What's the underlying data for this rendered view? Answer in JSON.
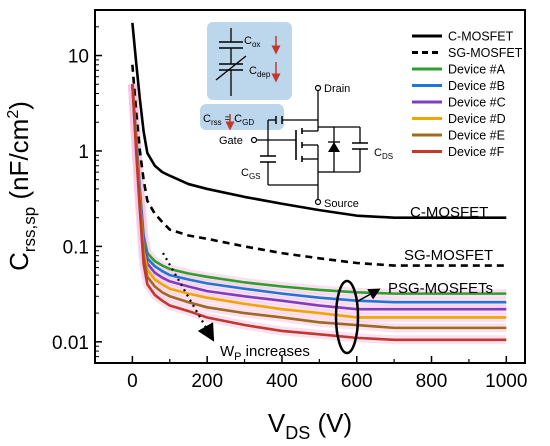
{
  "chart_data": {
    "type": "line",
    "xlabel": {
      "main": "V",
      "sub": "DS",
      "unit": " (V)"
    },
    "ylabel": {
      "main": "C",
      "sub": "rss,sp",
      "unit": " (nF/cm",
      "sup": "2",
      "close": ")"
    },
    "xlim": [
      -100,
      1050
    ],
    "ylim": [
      0.006,
      30
    ],
    "yscale": "log",
    "xticks": [
      0,
      200,
      400,
      600,
      800,
      1000
    ],
    "xtick_labels": [
      "0",
      "200",
      "400",
      "600",
      "800",
      "1000"
    ],
    "yticks": [
      0.01,
      0.1,
      1,
      10
    ],
    "ytick_labels": [
      "0.01",
      "0.1",
      "1",
      "10"
    ],
    "grid": false,
    "legend_position": "top-right",
    "series": [
      {
        "name": "C-MOSFET",
        "color": "#000000",
        "dash": "solid",
        "x": [
          0,
          10,
          20,
          30,
          40,
          60,
          80,
          100,
          150,
          200,
          300,
          400,
          500,
          600,
          700,
          800,
          900,
          1000
        ],
        "y": [
          22,
          8.5,
          3.5,
          1.6,
          0.95,
          0.7,
          0.6,
          0.55,
          0.45,
          0.4,
          0.33,
          0.28,
          0.24,
          0.21,
          0.2,
          0.2,
          0.2,
          0.2
        ]
      },
      {
        "name": "SG-MOSFET",
        "color": "#000000",
        "dash": "dashed",
        "x": [
          0,
          10,
          20,
          30,
          40,
          60,
          80,
          100,
          150,
          200,
          300,
          400,
          500,
          600,
          700,
          800,
          900,
          1000
        ],
        "y": [
          8,
          2.6,
          1.0,
          0.5,
          0.3,
          0.22,
          0.18,
          0.15,
          0.13,
          0.12,
          0.1,
          0.085,
          0.075,
          0.067,
          0.063,
          0.063,
          0.063,
          0.063
        ]
      },
      {
        "name": "Device #A",
        "color": "#2ca02c",
        "dash": "solid",
        "x": [
          0,
          10,
          20,
          30,
          40,
          60,
          80,
          100,
          150,
          200,
          300,
          400,
          500,
          600,
          700,
          800,
          900,
          1000
        ],
        "y": [
          5,
          1.5,
          0.4,
          0.13,
          0.085,
          0.07,
          0.063,
          0.058,
          0.052,
          0.048,
          0.042,
          0.038,
          0.035,
          0.033,
          0.032,
          0.032,
          0.032,
          0.032
        ]
      },
      {
        "name": "Device #B",
        "color": "#1f77d4",
        "dash": "solid",
        "x": [
          0,
          10,
          20,
          30,
          40,
          60,
          80,
          100,
          150,
          200,
          300,
          400,
          500,
          600,
          700,
          800,
          900,
          1000
        ],
        "y": [
          5,
          1.4,
          0.37,
          0.12,
          0.075,
          0.062,
          0.055,
          0.05,
          0.045,
          0.041,
          0.036,
          0.032,
          0.029,
          0.027,
          0.026,
          0.026,
          0.026,
          0.026
        ]
      },
      {
        "name": "Device #C",
        "color": "#7e3fbf",
        "dash": "solid",
        "x": [
          0,
          10,
          20,
          30,
          40,
          60,
          80,
          100,
          150,
          200,
          300,
          400,
          500,
          600,
          700,
          800,
          900,
          1000
        ],
        "y": [
          5,
          1.3,
          0.34,
          0.105,
          0.066,
          0.053,
          0.047,
          0.043,
          0.038,
          0.034,
          0.03,
          0.027,
          0.024,
          0.022,
          0.022,
          0.022,
          0.022,
          0.022
        ]
      },
      {
        "name": "Device #D",
        "color": "#f0a500",
        "dash": "solid",
        "x": [
          0,
          10,
          20,
          30,
          40,
          60,
          80,
          100,
          150,
          200,
          300,
          400,
          500,
          600,
          700,
          800,
          900,
          1000
        ],
        "y": [
          5,
          1.2,
          0.3,
          0.09,
          0.057,
          0.045,
          0.04,
          0.036,
          0.032,
          0.029,
          0.025,
          0.022,
          0.02,
          0.018,
          0.018,
          0.018,
          0.018,
          0.018
        ]
      },
      {
        "name": "Device #E",
        "color": "#9c6b1e",
        "dash": "solid",
        "x": [
          0,
          10,
          20,
          30,
          40,
          60,
          80,
          100,
          150,
          200,
          300,
          400,
          500,
          600,
          700,
          800,
          900,
          1000
        ],
        "y": [
          5,
          1.1,
          0.27,
          0.078,
          0.048,
          0.038,
          0.033,
          0.03,
          0.026,
          0.023,
          0.02,
          0.018,
          0.016,
          0.015,
          0.014,
          0.014,
          0.014,
          0.014
        ]
      },
      {
        "name": "Device #F",
        "color": "#c0392b",
        "dash": "solid",
        "x": [
          0,
          10,
          20,
          30,
          40,
          60,
          80,
          100,
          150,
          200,
          300,
          400,
          500,
          600,
          700,
          800,
          900,
          1000
        ],
        "y": [
          5,
          1.0,
          0.24,
          0.066,
          0.04,
          0.031,
          0.027,
          0.024,
          0.021,
          0.018,
          0.015,
          0.013,
          0.012,
          0.011,
          0.0105,
          0.0105,
          0.0105,
          0.0105
        ]
      }
    ],
    "annotations": {
      "cmosfet": "C-MOSFET",
      "sgmosfet": "SG-MOSFET",
      "psg": "PSG-MOSFETs",
      "wp": {
        "main": "W",
        "sub": "P",
        "rest": " increases"
      }
    },
    "inset": {
      "cox": {
        "main": "C",
        "sub": "ox"
      },
      "cdep": {
        "main": "C",
        "sub": "dep"
      },
      "crss_eq": {
        "a": "C",
        "a_sub": "rss",
        "eq": " = C",
        "b_sub": "GD"
      },
      "gate": "Gate",
      "drain": "Drain",
      "source": "Source",
      "cgs": {
        "main": "C",
        "sub": "GS"
      },
      "cds": {
        "main": "C",
        "sub": "DS"
      }
    }
  }
}
